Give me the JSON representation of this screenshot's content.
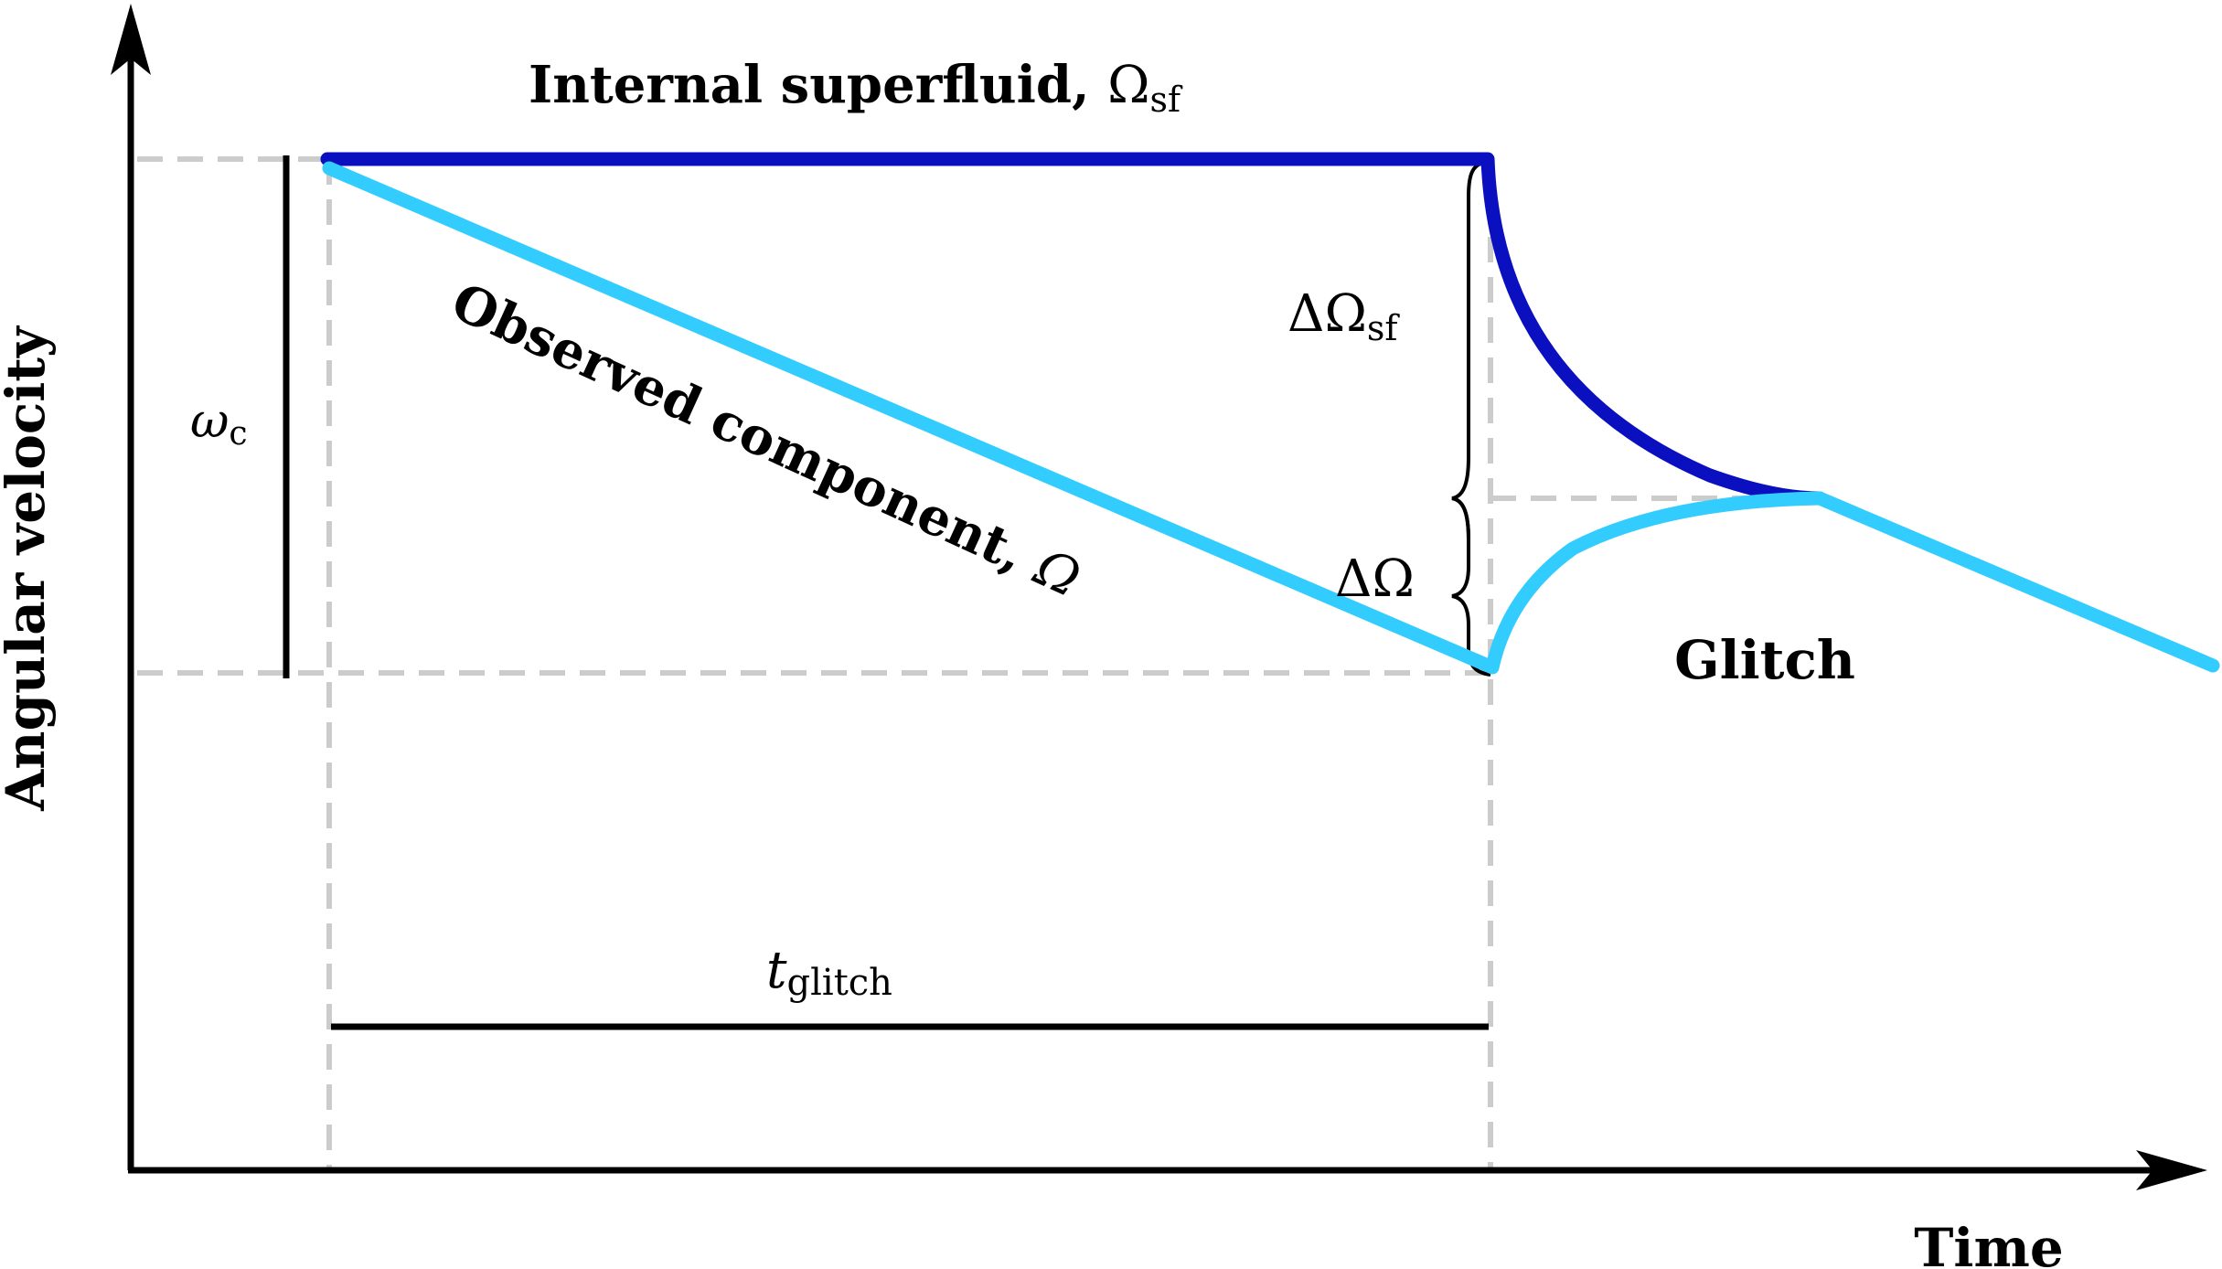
{
  "labels": {
    "y_axis": "Angular velocity",
    "x_axis": "Time",
    "superfluid_title": "Internal superfluid, ",
    "superfluid_symbol": "Ω",
    "superfluid_sub": "sf",
    "observed_title": "Observed component, ",
    "observed_symbol": "Ω",
    "omega_c_symbol": "ω",
    "omega_c_sub": "c",
    "delta_sf_symbol": "ΔΩ",
    "delta_sf_sub": "sf",
    "delta_symbol": "ΔΩ",
    "glitch": "Glitch",
    "t_glitch_symbol": "t",
    "t_glitch_sub": "glitch"
  },
  "colors": {
    "superfluid": "#0a10c0",
    "observed": "#33ccff",
    "guide": "#cccccc",
    "ink": "#000000"
  },
  "icons": {
    "y_axis_arrow": "arrowhead-up",
    "x_axis_arrow": "arrowhead-right",
    "delta_sf_brace": "curly-brace-left",
    "delta_brace": "curly-brace-left"
  }
}
